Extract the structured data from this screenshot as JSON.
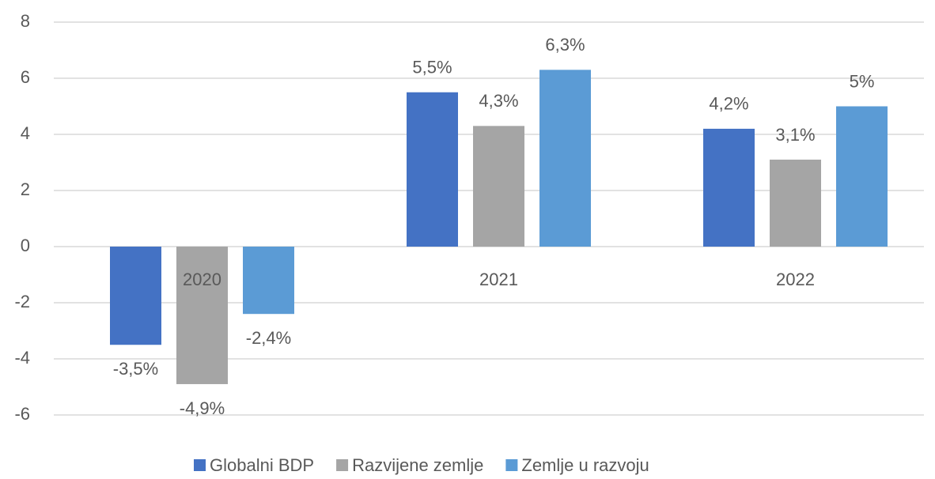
{
  "chart_data": {
    "type": "bar",
    "categories": [
      "2020",
      "2021",
      "2022"
    ],
    "series": [
      {
        "name": "Globalni BDP",
        "color": "#4472c4",
        "values": [
          -3.5,
          5.5,
          4.2
        ],
        "value_labels": [
          "-3,5%",
          "5,5%",
          "4,2%"
        ]
      },
      {
        "name": "Razvijene zemlje",
        "color": "#a5a5a5",
        "values": [
          -4.9,
          4.3,
          3.1
        ],
        "value_labels": [
          "-4,9%",
          "4,3%",
          "3,1%"
        ]
      },
      {
        "name": "Zemlje u razvoju",
        "color": "#5b9bd5",
        "values": [
          -2.4,
          6.3,
          5
        ],
        "value_labels": [
          "-2,4%",
          "6,3%",
          "5%"
        ]
      }
    ],
    "ylim": [
      -6,
      8
    ],
    "yticks": [
      -6,
      -4,
      -2,
      0,
      2,
      4,
      6,
      8
    ],
    "grid": true,
    "legend": "bottom"
  }
}
